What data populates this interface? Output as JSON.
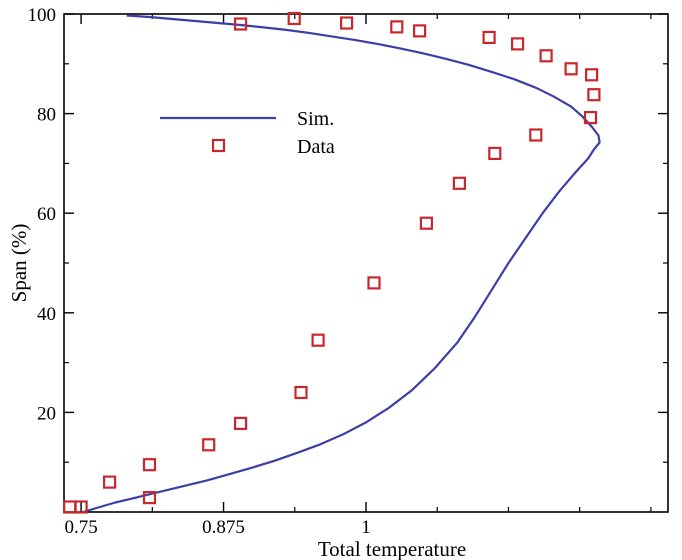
{
  "chart_data": {
    "type": "line",
    "xlabel": "Total temperature",
    "ylabel": "Span (%)",
    "xlim": [
      0.735,
      1.265
    ],
    "ylim": [
      0,
      100
    ],
    "xticks": [
      0.75,
      0.875,
      1
    ],
    "xtick_labels": [
      "0.75",
      "0.875",
      "1"
    ],
    "xticks_minor": [
      0.8125,
      0.9375,
      1.0625,
      1.125,
      1.1875,
      1.25
    ],
    "yticks": [
      20,
      40,
      60,
      80,
      100
    ],
    "ytick_labels": [
      "20",
      "40",
      "60",
      "80",
      "100"
    ],
    "grid": false,
    "legend": "upper-left inside plot",
    "series": [
      {
        "name": "Sim.",
        "style": "line",
        "color": "#3b3fa6",
        "x": [
          0.752,
          0.765,
          0.78,
          0.8,
          0.82,
          0.84,
          0.86,
          0.88,
          0.9,
          0.92,
          0.94,
          0.96,
          0.98,
          1.0,
          1.02,
          1.04,
          1.06,
          1.08,
          1.095,
          1.11,
          1.125,
          1.14,
          1.155,
          1.17,
          1.185,
          1.195,
          1.2,
          1.205,
          1.204,
          1.198,
          1.19,
          1.18,
          1.165,
          1.15,
          1.13,
          1.11,
          1.09,
          1.07,
          1.05,
          1.03,
          1.01,
          0.99,
          0.97,
          0.95,
          0.93,
          0.91,
          0.89,
          0.87,
          0.85,
          0.83,
          0.81,
          0.79
        ],
        "y": [
          0.0,
          0.9,
          1.9,
          3.0,
          4.1,
          5.2,
          6.3,
          7.6,
          8.9,
          10.3,
          11.9,
          13.6,
          15.6,
          18.0,
          20.9,
          24.4,
          28.8,
          34.0,
          39.0,
          44.5,
          50.0,
          55.0,
          60.0,
          64.5,
          68.5,
          71.0,
          72.8,
          74.2,
          75.6,
          77.4,
          79.4,
          81.4,
          83.4,
          85.1,
          86.9,
          88.4,
          89.8,
          91.0,
          92.1,
          93.1,
          94.0,
          94.8,
          95.5,
          96.2,
          96.8,
          97.3,
          97.8,
          98.2,
          98.6,
          99.0,
          99.4,
          99.7
        ]
      },
      {
        "name": "Data",
        "style": "markers",
        "marker": "square",
        "color": "#c8282c",
        "x": [
          0.75,
          0.775,
          0.81,
          0.862,
          0.89,
          0.943,
          0.958,
          1.007,
          1.053,
          1.082,
          1.113,
          1.149,
          1.197,
          1.2,
          1.198,
          1.18,
          1.158,
          1.133,
          1.108,
          1.047,
          1.027,
          0.983,
          0.937,
          0.89,
          0.81,
          0.74
        ],
        "y": [
          1.0,
          6.0,
          9.5,
          13.5,
          17.8,
          24.0,
          34.5,
          46.0,
          58.0,
          66.0,
          72.0,
          75.7,
          79.2,
          83.8,
          87.8,
          89.0,
          91.6,
          94.0,
          95.3,
          96.6,
          97.4,
          98.2,
          99.1,
          98.0,
          2.9,
          1.0
        ]
      }
    ]
  }
}
